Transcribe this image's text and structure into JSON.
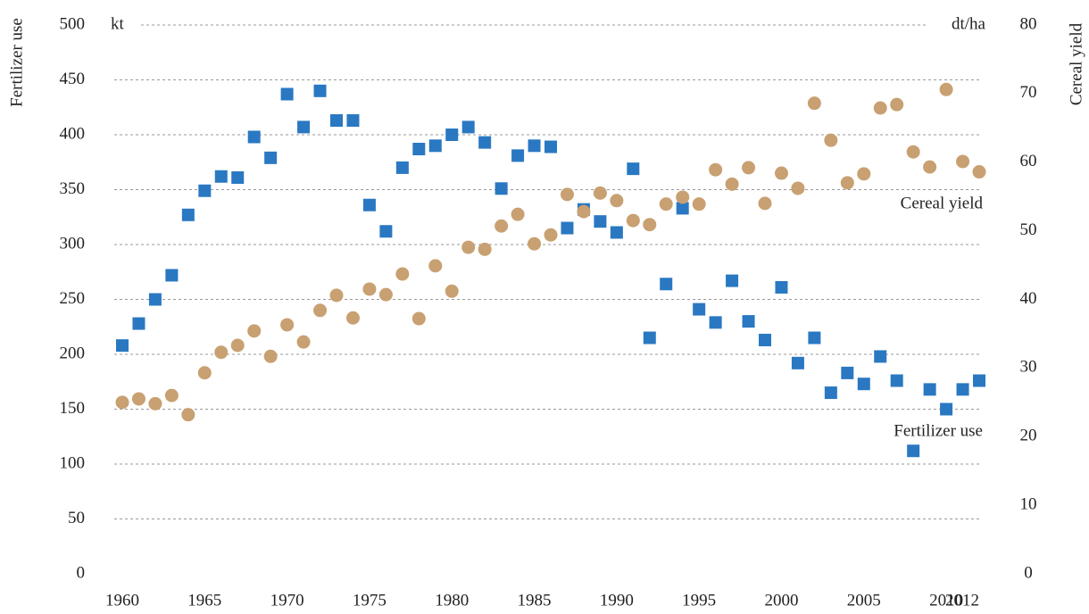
{
  "chart_data": {
    "type": "scatter",
    "y_label": "Fertilizer use",
    "y2_label": "Cereal yield",
    "y_unit": "kt",
    "y2_unit": "dt/ha",
    "annotations": [
      "Cereal yield",
      "Fertilizer use"
    ],
    "x": [
      1960,
      1961,
      1962,
      1963,
      1964,
      1965,
      1966,
      1967,
      1968,
      1969,
      1970,
      1971,
      1972,
      1973,
      1974,
      1975,
      1976,
      1977,
      1978,
      1979,
      1980,
      1981,
      1982,
      1983,
      1984,
      1985,
      1986,
      1987,
      1988,
      1989,
      1990,
      1991,
      1992,
      1993,
      1994,
      1995,
      1996,
      1997,
      1998,
      1999,
      2000,
      2001,
      2002,
      2003,
      2004,
      2005,
      2006,
      2007,
      2008,
      2009,
      2010,
      2011,
      2012
    ],
    "series": [
      {
        "name": "Fertilizer use",
        "color": "#2a78c2",
        "marker": "square",
        "axis": "y",
        "values": [
          208,
          228,
          250,
          272,
          327,
          349,
          362,
          361,
          398,
          379,
          437,
          407,
          440,
          413,
          413,
          336,
          312,
          370,
          387,
          390,
          400,
          407,
          393,
          351,
          381,
          390,
          389,
          315,
          332,
          321,
          311,
          369,
          215,
          264,
          333,
          241,
          229,
          267,
          230,
          213,
          261,
          192,
          215,
          165,
          183,
          173,
          198,
          176,
          112,
          168,
          150,
          168,
          176
        ]
      },
      {
        "name": "Cereal yield",
        "color": "#c8a071",
        "marker": "circle",
        "axis": "y2",
        "values": [
          25.0,
          25.5,
          24.8,
          26.0,
          23.2,
          29.3,
          32.3,
          33.3,
          35.4,
          31.7,
          36.3,
          33.8,
          38.4,
          40.6,
          37.3,
          41.5,
          40.7,
          43.7,
          37.2,
          44.9,
          41.2,
          47.6,
          47.3,
          50.7,
          52.4,
          48.1,
          49.4,
          55.3,
          52.8,
          55.5,
          54.4,
          51.5,
          50.9,
          53.9,
          54.9,
          53.9,
          58.9,
          56.8,
          59.2,
          54.0,
          58.4,
          56.2,
          68.6,
          63.2,
          57.0,
          58.3,
          67.9,
          68.4,
          61.5,
          59.3,
          70.6,
          60.1,
          58.6
        ]
      }
    ],
    "xlim": [
      1960,
      2012
    ],
    "xticks": [
      1960,
      1965,
      1970,
      1975,
      1980,
      1985,
      1990,
      1995,
      2000,
      2005,
      2010,
      2012
    ],
    "ylim": [
      0,
      500
    ],
    "yticks": [
      0,
      50,
      100,
      150,
      200,
      250,
      300,
      350,
      400,
      450,
      500
    ],
    "y2lim": [
      0,
      80
    ],
    "y2ticks": [
      0,
      10,
      20,
      30,
      40,
      50,
      60,
      70,
      80
    ],
    "grid": true
  }
}
